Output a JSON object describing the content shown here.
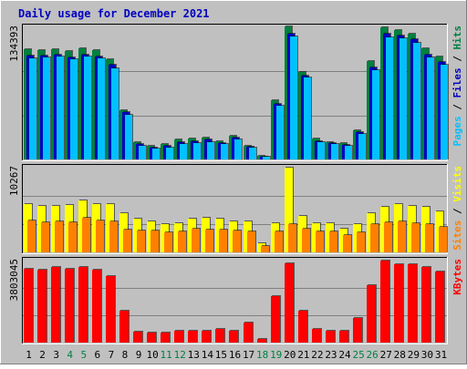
{
  "chart_data": {
    "type": "bar",
    "title": "Daily usage for December 2021",
    "categories": [
      "1",
      "2",
      "3",
      "4",
      "5",
      "6",
      "7",
      "8",
      "9",
      "10",
      "11",
      "12",
      "13",
      "14",
      "15",
      "16",
      "17",
      "18",
      "19",
      "20",
      "21",
      "22",
      "23",
      "24",
      "25",
      "26",
      "27",
      "28",
      "29",
      "30",
      "31"
    ],
    "weekend_days": [
      4,
      5,
      11,
      12,
      18,
      19,
      25,
      26
    ],
    "colors": {
      "frame_bg": "#c0c0c0",
      "plot_bg": "#c0c0c0",
      "title": "#0000c0",
      "axis_text": "#000000",
      "weekday_label": "#000000",
      "weekend_label": "#008040",
      "hits": "#008040",
      "files": "#0000c0",
      "pages": "#00c0ff",
      "visits": "#ffff00",
      "sites": "#ff8000",
      "kbytes": "#ff0000"
    },
    "panels": [
      {
        "name": "hits-files-pages",
        "ymax": 134393,
        "ymax_label": "134393",
        "side_label": [
          {
            "text": "Pages",
            "color_key": "pages"
          },
          {
            "text": " / ",
            "color_key": "axis_text"
          },
          {
            "text": "Files",
            "color_key": "files"
          },
          {
            "text": " / ",
            "color_key": "axis_text"
          },
          {
            "text": "Hits",
            "color_key": "hits"
          }
        ],
        "series": [
          {
            "name": "Hits",
            "color_key": "hits",
            "values": [
              112000,
              111500,
              112500,
              110000,
              113000,
              111000,
              102000,
              50000,
              18000,
              14000,
              16000,
              20000,
              21000,
              22000,
              19000,
              24000,
              14000,
              3500,
              60000,
              135000,
              89000,
              21000,
              18000,
              17000,
              30000,
              100000,
              134000,
              132000,
              128000,
              113000,
              105000
            ]
          },
          {
            "name": "Files",
            "color_key": "files",
            "values": [
              106000,
              106000,
              107000,
              104000,
              107000,
              105000,
              96000,
              48000,
              16000,
              12000,
              14000,
              18000,
              19000,
              20000,
              17000,
              22000,
              13000,
              3000,
              57000,
              128000,
              85000,
              19000,
              17000,
              15000,
              28000,
              94000,
              128000,
              126000,
              122000,
              107000,
              99000
            ]
          },
          {
            "name": "Pages",
            "color_key": "pages",
            "values": [
              103000,
              104000,
              105000,
              102000,
              105000,
              103000,
              93000,
              45000,
              14000,
              11000,
              12000,
              16000,
              17000,
              18000,
              16000,
              20000,
              12000,
              3000,
              55000,
              125000,
              83000,
              18000,
              16000,
              14000,
              26000,
              91000,
              124000,
              123000,
              119000,
              104000,
              96000
            ]
          }
        ]
      },
      {
        "name": "visits-sites",
        "ymax": 10267,
        "ymax_label": "10267",
        "side_label": [
          {
            "text": "Sites",
            "color_key": "sites"
          },
          {
            "text": " / ",
            "color_key": "axis_text"
          },
          {
            "text": "Visits",
            "color_key": "visits"
          }
        ],
        "series": [
          {
            "name": "Visits",
            "color_key": "visits",
            "values": [
              5800,
              5600,
              5600,
              5700,
              6300,
              5900,
              5900,
              4700,
              4100,
              3700,
              3400,
              3500,
              4100,
              4200,
              4100,
              3700,
              3700,
              1100,
              3500,
              10267,
              4400,
              3500,
              3500,
              2900,
              3400,
              4700,
              5500,
              5900,
              5600,
              5500,
              5000
            ]
          },
          {
            "name": "Sites",
            "color_key": "sites",
            "values": [
              3900,
              3600,
              3800,
              3600,
              4200,
              3900,
              3800,
              2800,
              2600,
              2600,
              2400,
              2500,
              2900,
              2800,
              2800,
              2600,
              2500,
              800,
              2500,
              3400,
              2900,
              2500,
              2500,
              2100,
              2400,
              3400,
              3600,
              3700,
              3500,
              3400,
              3100
            ]
          }
        ]
      },
      {
        "name": "kbytes",
        "ymax": 3803045,
        "ymax_label": "3803045",
        "side_label": [
          {
            "text": "KBytes",
            "color_key": "kbytes"
          }
        ],
        "series": [
          {
            "name": "KBytes",
            "color_key": "kbytes",
            "values": [
              3440000,
              3390000,
              3510000,
              3440000,
              3500000,
              3390000,
              3070000,
              1460000,
              510000,
              450000,
              470000,
              530000,
              550000,
              560000,
              640000,
              570000,
              910000,
              170000,
              2160000,
              3680000,
              1460000,
              630000,
              540000,
              540000,
              1130000,
              2680000,
              3803045,
              3650000,
              3620000,
              3520000,
              3300000
            ]
          }
        ]
      }
    ]
  }
}
